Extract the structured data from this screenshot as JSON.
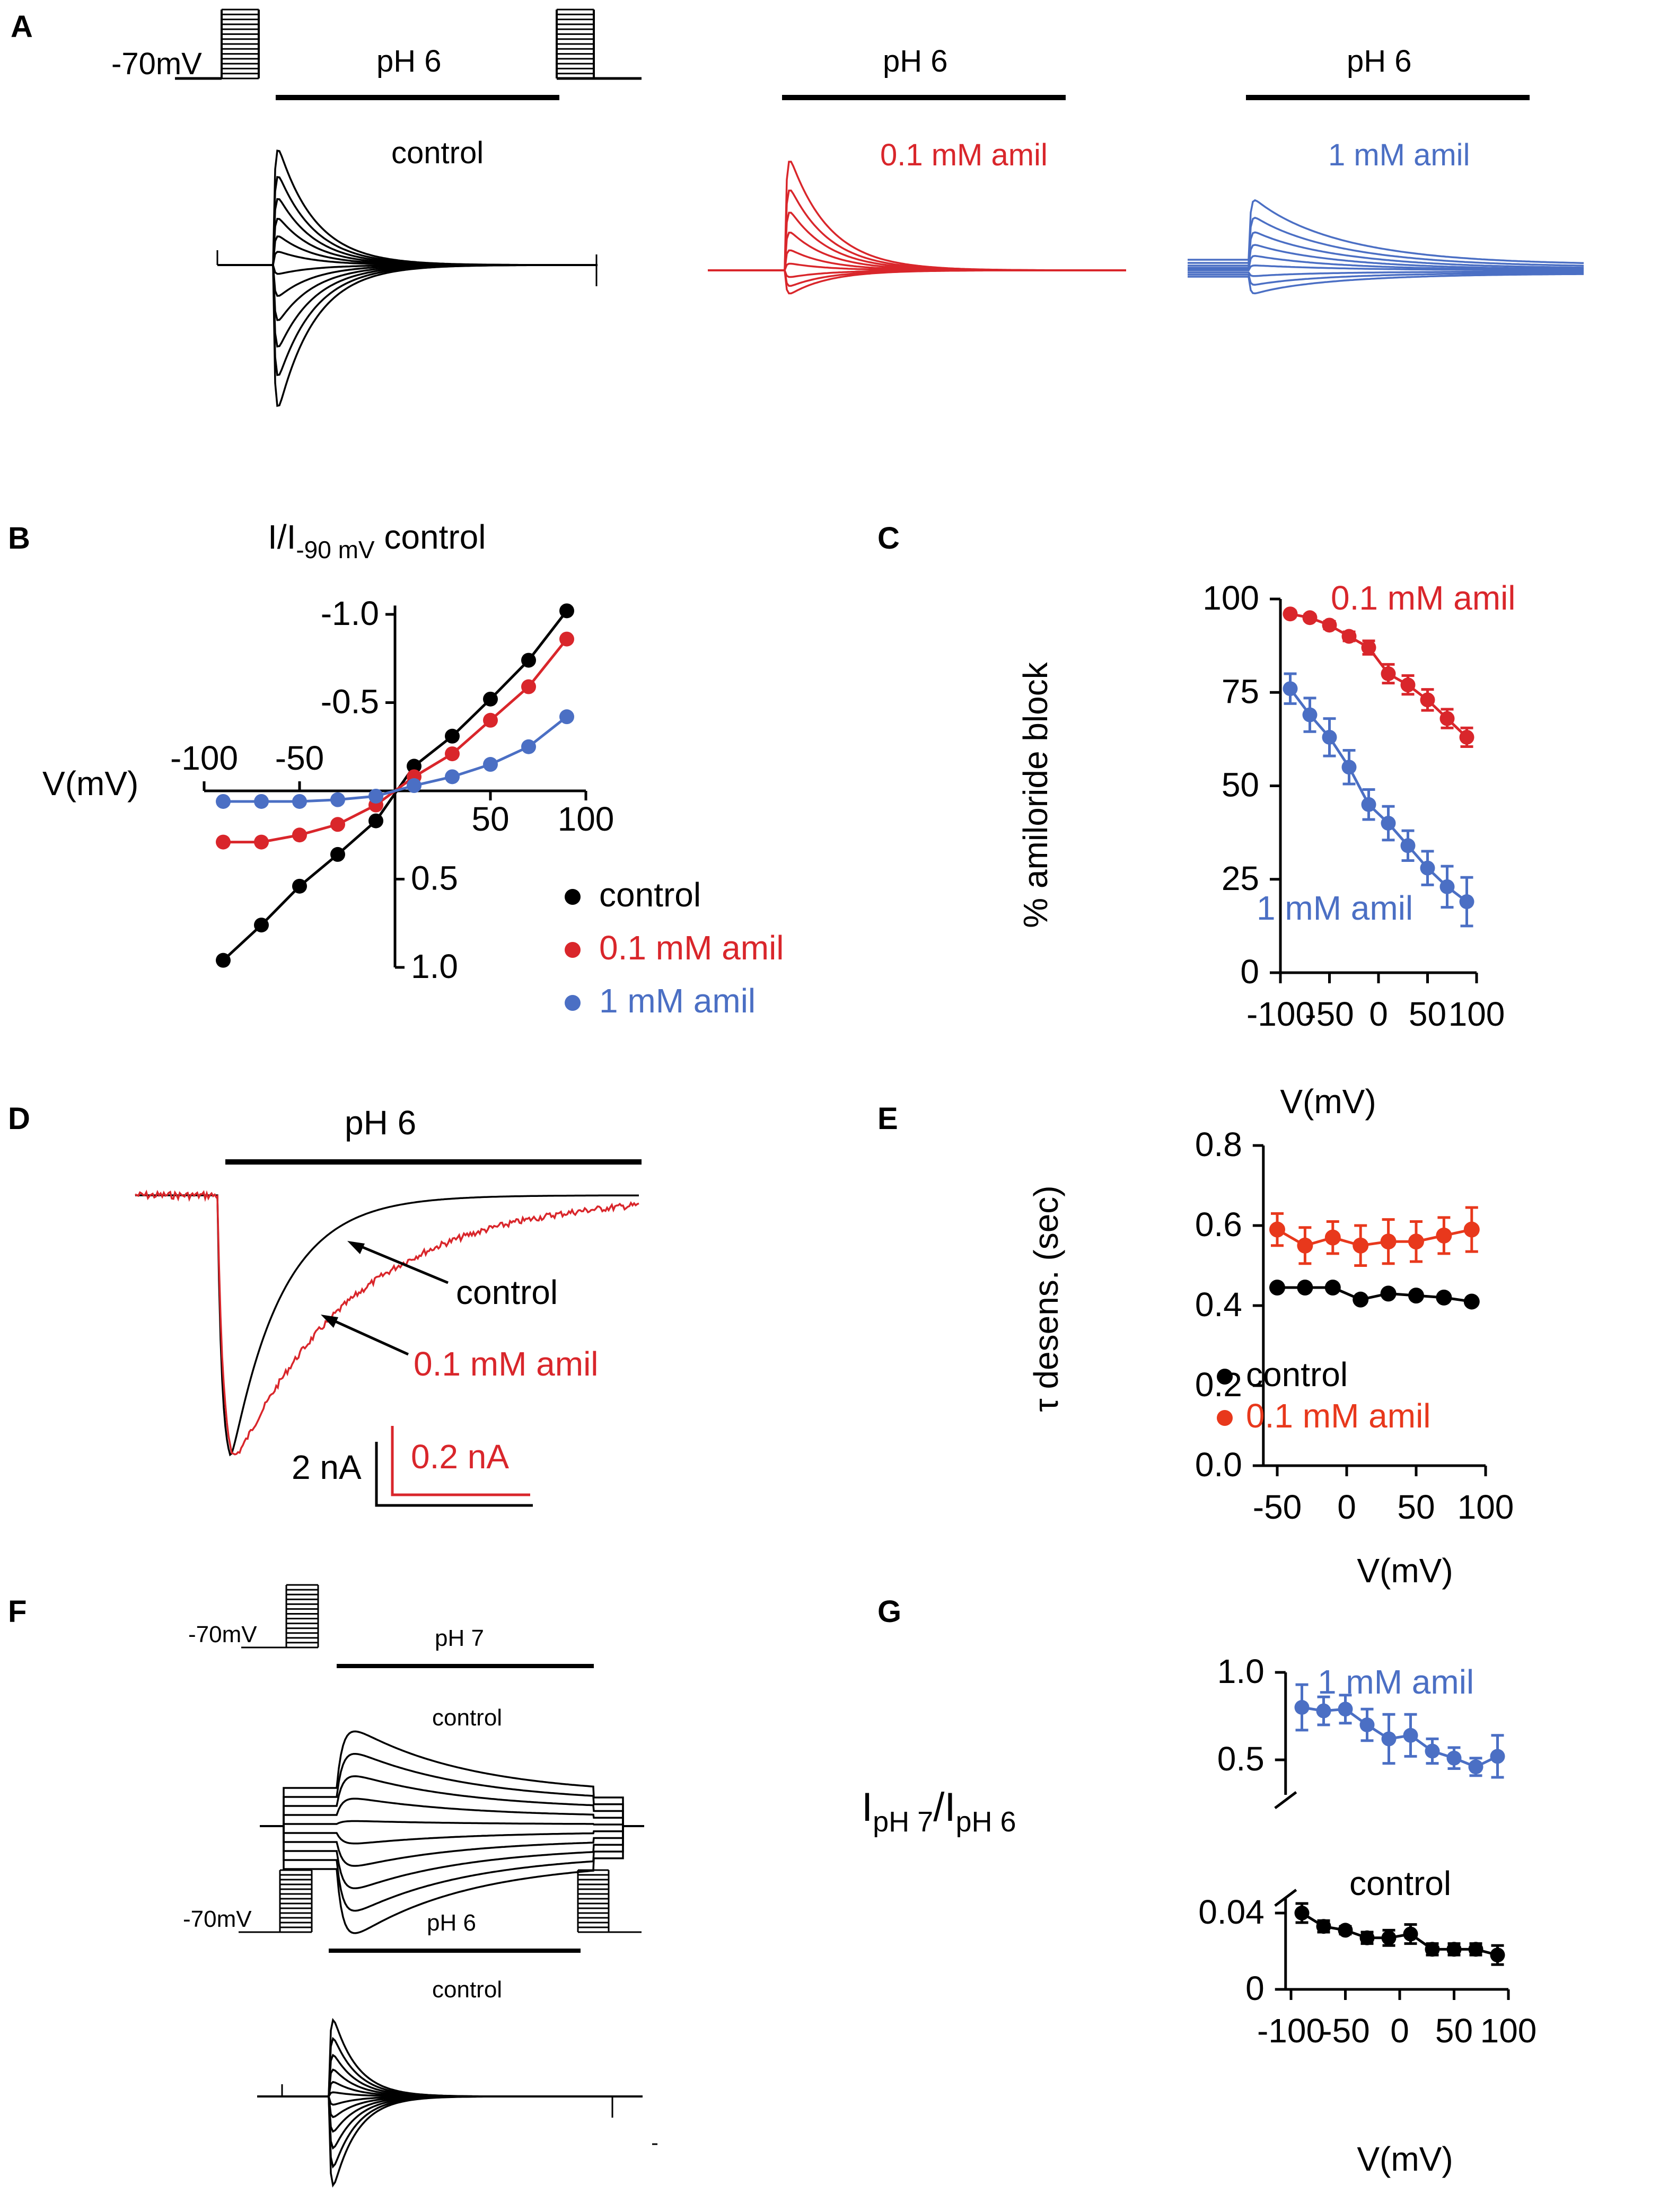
{
  "colors": {
    "control": "#000000",
    "amil01": "#d9262b",
    "amil1": "#4b6fc4",
    "amilE": "#e8381c"
  },
  "panelA": {
    "letter": "A",
    "holding": "-70mV",
    "ph": "pH 6",
    "labels": {
      "control": "control",
      "amil01": "0.1 mM amil",
      "amil1": "1 mM amil"
    }
  },
  "panelB": {
    "letter": "B",
    "xlabel": "V(mV)",
    "ylabel_main": "I/I",
    "ylabel_sub": "-90 mV",
    "ylabel_end": " control"
  },
  "panelC": {
    "letter": "C",
    "xlabel": "V(mV)",
    "ylabel": "% amiloride block"
  },
  "panelD": {
    "letter": "D",
    "ph": "pH 6",
    "label_control": "control",
    "label_amil": "0.1 mM amil",
    "scale_black": "2 nA",
    "scale_red": "0.2 nA"
  },
  "panelE": {
    "letter": "E",
    "xlabel": "V(mV)",
    "ylabel": "τ desens. (sec)"
  },
  "panelF": {
    "letter": "F",
    "holding": "-70mV",
    "ph_top": "pH 7",
    "ph_bottom": "pH 6",
    "label_top": "control",
    "label_bottom": "control"
  },
  "panelG": {
    "letter": "G",
    "xlabel": "V(mV)",
    "ylabel_I": "I",
    "ylabel_s1": "pH 7",
    "ylabel_slash": "/I",
    "ylabel_s2": "pH 6",
    "label_amil": "1 mM amil",
    "label_control": "control"
  },
  "chart_data": [
    {
      "panel": "B",
      "type": "scatter",
      "title": "",
      "xlabel": "V(mV)",
      "ylabel": "I/I-90 mV control",
      "xlim": [
        -100,
        100
      ],
      "ylim": [
        -1.0,
        1.0
      ],
      "xticks": [
        "-100",
        "-50",
        "50",
        "100"
      ],
      "yticks": [
        "-1.0",
        "-0.5",
        "0.5",
        "1.0"
      ],
      "x": [
        -90,
        -70,
        -50,
        -30,
        -10,
        10,
        30,
        50,
        70,
        90
      ],
      "series": [
        {
          "name": "control",
          "values": [
            0.96,
            0.76,
            0.54,
            0.36,
            0.17,
            -0.14,
            -0.31,
            -0.52,
            -0.74,
            -1.02
          ]
        },
        {
          "name": "0.1 mM amil",
          "values": [
            0.29,
            0.29,
            0.25,
            0.19,
            0.08,
            -0.08,
            -0.21,
            -0.4,
            -0.59,
            -0.86
          ]
        },
        {
          "name": "1 mM amil",
          "values": [
            0.06,
            0.06,
            0.06,
            0.05,
            0.03,
            -0.03,
            -0.08,
            -0.15,
            -0.25,
            -0.42
          ]
        }
      ],
      "legend": [
        "control",
        "0.1 mM amil",
        "1 mM amil"
      ]
    },
    {
      "panel": "C",
      "type": "line",
      "xlabel": "V(mV)",
      "ylabel": "% amiloride block",
      "xlim": [
        -100,
        100
      ],
      "ylim": [
        0,
        100
      ],
      "xticks": [
        "-100",
        "-50",
        "0",
        "50",
        "100"
      ],
      "yticks": [
        "0",
        "25",
        "50",
        "75",
        "100"
      ],
      "x": [
        -90,
        -70,
        -50,
        -30,
        -10,
        10,
        30,
        50,
        70,
        90
      ],
      "series": [
        {
          "name": "0.1 mM amil",
          "values": [
            96,
            95,
            93,
            90,
            87,
            80,
            77,
            73,
            68,
            63
          ],
          "err": [
            0.8,
            0.8,
            1,
            1.2,
            1.8,
            2.5,
            2.5,
            2.8,
            2.5,
            2.5
          ]
        },
        {
          "name": "1 mM amil",
          "values": [
            76,
            69,
            63,
            55,
            45,
            40,
            34,
            28,
            23,
            19
          ],
          "err": [
            4,
            4.5,
            5,
            4.5,
            4,
            4.5,
            4,
            4.5,
            5.5,
            6.5
          ]
        }
      ]
    },
    {
      "panel": "E",
      "type": "line",
      "xlabel": "V(mV)",
      "ylabel": "τ desens. (sec)",
      "xlim": [
        -55,
        100
      ],
      "ylim": [
        0.0,
        0.8
      ],
      "xticks": [
        "-50",
        "0",
        "50",
        "100"
      ],
      "yticks": [
        "0.0",
        "0.2",
        "0.4",
        "0.6",
        "0.8"
      ],
      "x": [
        -50,
        -30,
        -10,
        10,
        30,
        50,
        70,
        90
      ],
      "series": [
        {
          "name": "control",
          "values": [
            0.445,
            0.445,
            0.445,
            0.415,
            0.43,
            0.425,
            0.42,
            0.41
          ],
          "err": [
            0,
            0,
            0,
            0,
            0,
            0,
            0,
            0
          ]
        },
        {
          "name": "0.1 mM amil",
          "values": [
            0.59,
            0.55,
            0.57,
            0.55,
            0.56,
            0.56,
            0.575,
            0.59
          ],
          "err": [
            0.04,
            0.045,
            0.04,
            0.05,
            0.055,
            0.05,
            0.045,
            0.055
          ]
        }
      ],
      "legend": [
        "control",
        "0.1 mM amil"
      ]
    },
    {
      "panel": "G",
      "type": "line",
      "xlabel": "V(mV)",
      "ylabel": "IpH 7/IpH 6",
      "xlim": [
        -100,
        100
      ],
      "xticks": [
        "-100",
        "-50",
        "0",
        "50",
        "100"
      ],
      "yticks_upper": [
        "0.5",
        "1.0"
      ],
      "yticks_lower": [
        "0",
        "0.04"
      ],
      "broken_axis": true,
      "x": [
        -90,
        -70,
        -50,
        -30,
        -10,
        10,
        30,
        50,
        70,
        90
      ],
      "series": [
        {
          "name": "1 mM amil",
          "values": [
            0.8,
            0.78,
            0.79,
            0.7,
            0.62,
            0.64,
            0.55,
            0.51,
            0.46,
            0.52
          ],
          "err": [
            0.13,
            0.08,
            0.08,
            0.09,
            0.14,
            0.12,
            0.07,
            0.06,
            0.05,
            0.12
          ]
        },
        {
          "name": "control",
          "values": [
            0.04,
            0.033,
            0.031,
            0.027,
            0.027,
            0.029,
            0.021,
            0.021,
            0.021,
            0.018
          ],
          "err": [
            0.005,
            0.003,
            0.002,
            0.003,
            0.004,
            0.005,
            0.003,
            0.003,
            0.003,
            0.005
          ]
        }
      ]
    }
  ]
}
